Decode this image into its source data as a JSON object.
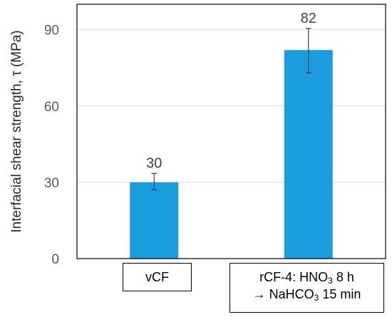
{
  "chart_data": {
    "type": "bar",
    "categories": [
      "vCF",
      "rCF-4: HNO3 8 h → NaHCO3 15 min"
    ],
    "category_lines": [
      [
        {
          "text": "vCF"
        }
      ],
      [
        {
          "text": "rCF-4: HNO",
          "sub": "3",
          "after": " 8 h"
        },
        {
          "text": "→ NaHCO",
          "sub": "3",
          "after": " 15 min"
        }
      ]
    ],
    "values": [
      30,
      82
    ],
    "value_labels": [
      "30",
      "82"
    ],
    "error_bars": [
      {
        "lower": 27,
        "upper": 33.5
      },
      {
        "lower": 73,
        "upper": 90.5
      }
    ],
    "ylabel": "Interfacial shear strength, τ (MPa)",
    "ylim": [
      0,
      100
    ],
    "yticks": [
      0,
      30,
      60,
      90
    ],
    "grid": true,
    "legend": "none",
    "colors": {
      "bar": "#1B9CDD",
      "grid": "#D9D9D9",
      "axis": "#000000",
      "error_bar": "#404040"
    }
  }
}
